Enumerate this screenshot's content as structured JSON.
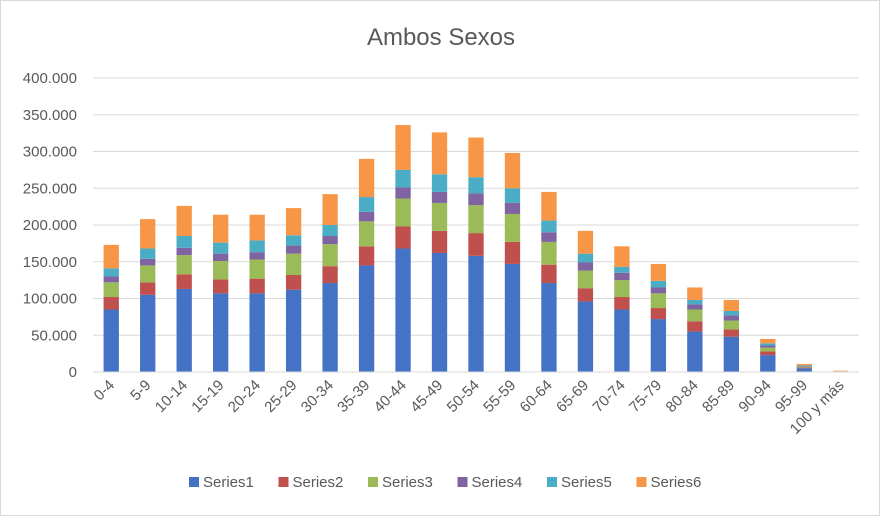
{
  "chart_data": {
    "type": "bar",
    "stacked": true,
    "title": "Ambos Sexos",
    "xlabel": "",
    "ylabel": "",
    "ylim": [
      0,
      400000
    ],
    "y_ticks": [
      {
        "value": 0,
        "label": "0"
      },
      {
        "value": 50000,
        "label": "50.000"
      },
      {
        "value": 100000,
        "label": "100.000"
      },
      {
        "value": 150000,
        "label": "150.000"
      },
      {
        "value": 200000,
        "label": "200.000"
      },
      {
        "value": 250000,
        "label": "250.000"
      },
      {
        "value": 300000,
        "label": "300.000"
      },
      {
        "value": 350000,
        "label": "350.000"
      },
      {
        "value": 400000,
        "label": "400.000"
      }
    ],
    "grid": true,
    "legend": "bottom",
    "categories": [
      "0-4",
      "5-9",
      "10-14",
      "15-19",
      "20-24",
      "25-29",
      "30-34",
      "35-39",
      "40-44",
      "45-49",
      "50-54",
      "55-59",
      "60-64",
      "65-69",
      "70-74",
      "75-79",
      "80-84",
      "85-89",
      "90-94",
      "95-99",
      "100 y más"
    ],
    "series": [
      {
        "name": "Series1",
        "color": "#4472c4",
        "values": [
          85000,
          105000,
          113000,
          107000,
          107000,
          112000,
          121000,
          145000,
          168000,
          162000,
          158000,
          147000,
          121000,
          96000,
          85000,
          72000,
          55000,
          48000,
          23000,
          5000,
          500
        ]
      },
      {
        "name": "Series2",
        "color": "#c0504d",
        "values": [
          17000,
          17000,
          20000,
          19000,
          20000,
          20000,
          23000,
          26000,
          30000,
          30000,
          31000,
          30000,
          25000,
          18000,
          17000,
          15000,
          14000,
          10000,
          5000,
          1000,
          200
        ]
      },
      {
        "name": "Series3",
        "color": "#9bbb59",
        "values": [
          20000,
          23000,
          26000,
          25000,
          26000,
          29000,
          30000,
          34000,
          38000,
          38000,
          38000,
          38000,
          31000,
          24000,
          23000,
          20000,
          16000,
          12000,
          5000,
          1000,
          200
        ]
      },
      {
        "name": "Series4",
        "color": "#8064a2",
        "values": [
          8000,
          9000,
          10000,
          10000,
          10000,
          11000,
          11000,
          13000,
          15000,
          15000,
          16000,
          15000,
          13000,
          11000,
          10000,
          8000,
          7000,
          7000,
          3000,
          1000,
          100
        ]
      },
      {
        "name": "Series5",
        "color": "#4bacc6",
        "values": [
          11000,
          14000,
          16000,
          15000,
          16000,
          14000,
          15000,
          20000,
          24000,
          24000,
          22000,
          20000,
          16000,
          12000,
          8000,
          9000,
          6000,
          6000,
          3000,
          1000,
          100
        ]
      },
      {
        "name": "Series6",
        "color": "#f79646",
        "values": [
          32000,
          40000,
          41000,
          38000,
          35000,
          37000,
          42000,
          52000,
          61000,
          57000,
          54000,
          48000,
          39000,
          31000,
          28000,
          23000,
          17000,
          15000,
          6000,
          2000,
          700
        ]
      }
    ]
  }
}
